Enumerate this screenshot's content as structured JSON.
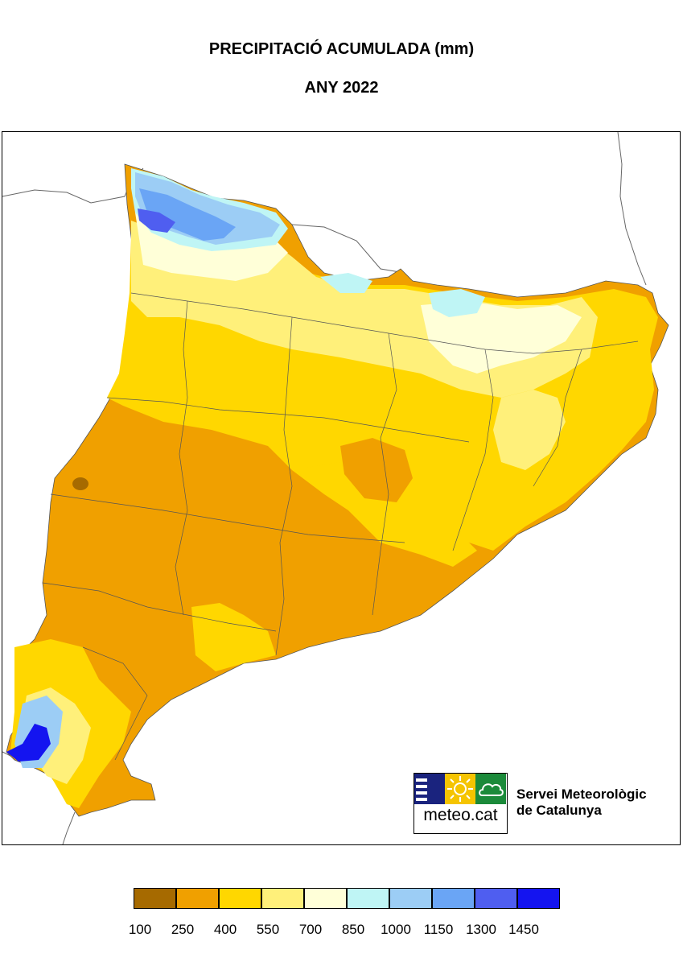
{
  "title": {
    "line1": "PRECIPITACIÓ ACUMULADA (mm)",
    "line2": "ANY 2022"
  },
  "legend": {
    "ticks": [
      "100",
      "250",
      "400",
      "550",
      "700",
      "850",
      "1000",
      "1150",
      "1300",
      "1450"
    ],
    "colors": [
      "#a66a00",
      "#f0a000",
      "#ffd700",
      "#fff07a",
      "#ffffd8",
      "#bff5f5",
      "#9ccdf5",
      "#6aa5f5",
      "#4f5ef0",
      "#1414f0"
    ]
  },
  "logo": {
    "text": "meteo.cat",
    "colors": {
      "navy": "#1a237e",
      "yellow": "#f5c400",
      "green": "#1b8a3a"
    }
  },
  "organization": {
    "line1": "Servei Meteorològic",
    "line2": "de Catalunya"
  }
}
